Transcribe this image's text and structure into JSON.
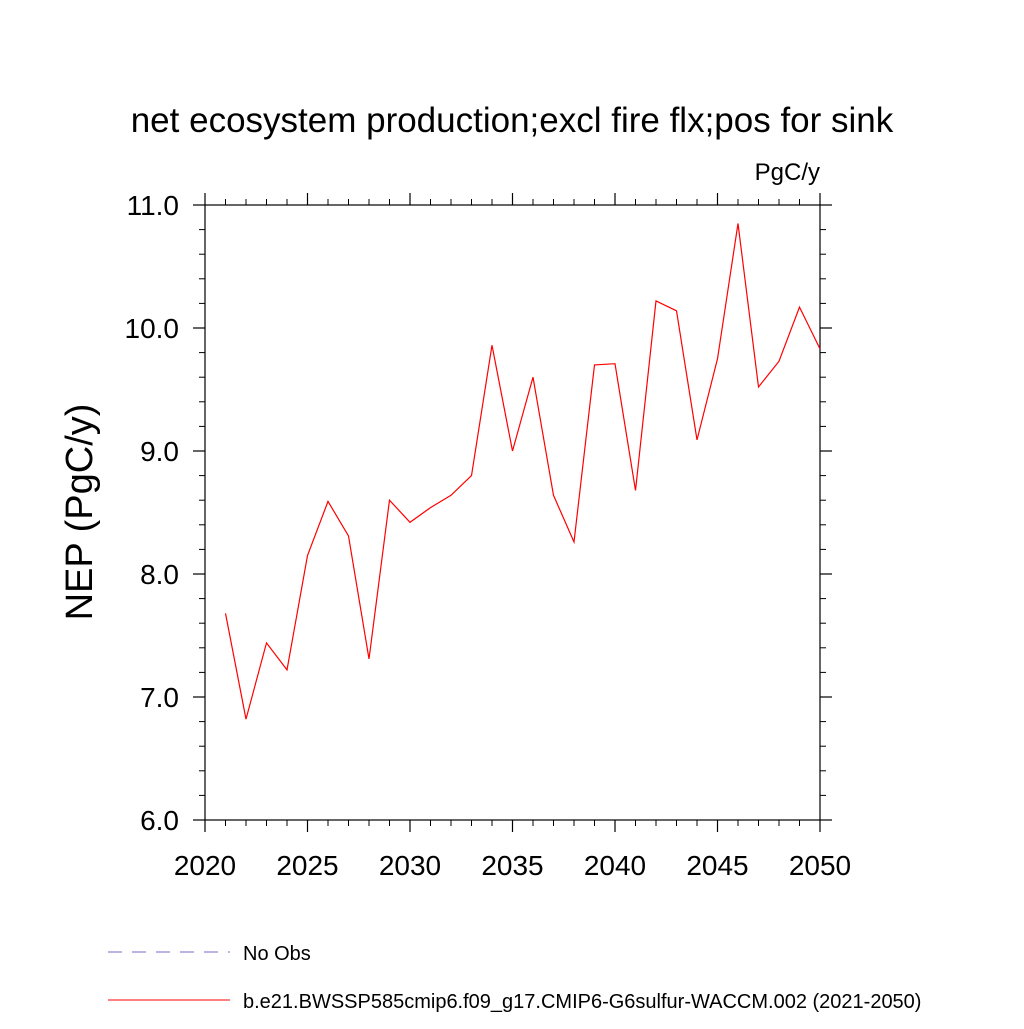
{
  "chart_data": {
    "type": "line",
    "title": "net ecosystem production;excl fire flx;pos for sink",
    "units": "PgC/y",
    "ylabel": "NEP  (PgC/y)",
    "xlabel": "",
    "xlim": [
      2020,
      2050
    ],
    "ylim": [
      6.0,
      11.0
    ],
    "x_ticks": [
      2020,
      2025,
      2030,
      2035,
      2040,
      2045,
      2050
    ],
    "x_tick_labels": [
      "2020",
      "2025",
      "2030",
      "2035",
      "2040",
      "2045",
      "2050"
    ],
    "y_ticks": [
      6.0,
      7.0,
      8.0,
      9.0,
      10.0,
      11.0
    ],
    "y_tick_labels": [
      "6.0",
      "7.0",
      "8.0",
      "9.0",
      "10.0",
      "11.0"
    ],
    "grid": false,
    "legend_position": "bottom",
    "series": [
      {
        "name": "b.e21.BWSSP585cmip6.f09_g17.CMIP6-G6sulfur-WACCM.002 (2021-2050)",
        "color": "#ff0000",
        "style": "solid",
        "x": [
          2021,
          2022,
          2023,
          2024,
          2025,
          2026,
          2027,
          2028,
          2029,
          2030,
          2031,
          2032,
          2033,
          2034,
          2035,
          2036,
          2037,
          2038,
          2039,
          2040,
          2041,
          2042,
          2043,
          2044,
          2045,
          2046,
          2047,
          2048,
          2049,
          2050
        ],
        "values": [
          7.68,
          6.82,
          7.44,
          7.22,
          8.15,
          8.59,
          8.31,
          7.31,
          8.6,
          8.42,
          8.54,
          8.64,
          8.8,
          9.86,
          9.0,
          9.6,
          8.64,
          8.26,
          9.7,
          9.71,
          8.68,
          10.22,
          10.14,
          9.09,
          9.75,
          10.85,
          9.52,
          9.73,
          10.17,
          9.83
        ]
      }
    ],
    "legend": [
      {
        "label": "No Obs",
        "color": "#7b68c8",
        "style": "dashed"
      },
      {
        "label": "b.e21.BWSSP585cmip6.f09_g17.CMIP6-G6sulfur-WACCM.002 (2021-2050)",
        "color": "#ff0000",
        "style": "solid"
      }
    ]
  }
}
